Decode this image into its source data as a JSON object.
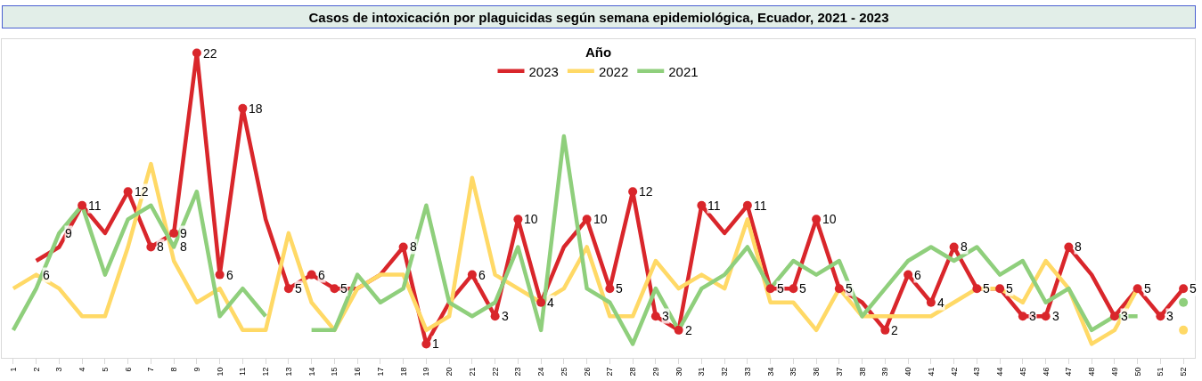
{
  "chart_data": {
    "type": "line",
    "title": "Casos de intoxicación por plaguicidas según semana epidemiológica, Ecuador, 2021 - 2023",
    "legend_title": "Año",
    "categories": [
      "1",
      "2",
      "3",
      "4",
      "5",
      "6",
      "7",
      "8",
      "9",
      "10",
      "11",
      "12",
      "13",
      "14",
      "15",
      "16",
      "17",
      "18",
      "19",
      "20",
      "21",
      "22",
      "23",
      "24",
      "25",
      "26",
      "27",
      "28",
      "29",
      "30",
      "31",
      "32",
      "33",
      "34",
      "35",
      "36",
      "37",
      "38",
      "39",
      "40",
      "41",
      "42",
      "43",
      "44",
      "45",
      "46",
      "47",
      "48",
      "49",
      "50",
      "51",
      "52"
    ],
    "series": [
      {
        "name": "2023",
        "color": "#d9262b",
        "values": [
          null,
          7,
          8,
          11,
          9,
          12,
          8,
          9,
          22,
          6,
          18,
          10,
          5,
          6,
          5,
          5,
          6,
          8,
          1,
          4,
          6,
          3,
          10,
          4,
          8,
          10,
          5,
          12,
          3,
          2,
          11,
          9,
          11,
          5,
          5,
          10,
          5,
          4,
          2,
          6,
          4,
          8,
          5,
          5,
          3,
          3,
          8,
          6,
          3,
          5,
          3,
          5
        ],
        "value_labels": [
          null,
          null,
          null,
          "11",
          null,
          "12",
          "8",
          "9",
          "22",
          "6",
          "18",
          null,
          "5",
          "6",
          "5",
          null,
          null,
          "8",
          "1",
          null,
          "6",
          "3",
          "10",
          "4",
          null,
          "10",
          "5",
          "12",
          "3",
          "2",
          "11",
          null,
          "11",
          "5",
          "5",
          "10",
          "5",
          null,
          "2",
          "6",
          "4",
          "8",
          "5",
          "5",
          "3",
          "3",
          "8",
          null,
          "3",
          "5",
          "3",
          "5"
        ]
      },
      {
        "name": "2022",
        "color": "#ffd966",
        "marker": "none",
        "values": [
          5,
          6,
          5,
          3,
          3,
          8,
          14,
          7,
          4,
          5,
          2,
          2,
          9,
          4,
          2,
          5,
          6,
          6,
          2,
          3,
          13,
          6,
          5,
          4,
          5,
          8,
          3,
          3,
          7,
          5,
          6,
          5,
          10,
          4,
          4,
          2,
          5,
          3,
          3,
          3,
          3,
          4,
          5,
          5,
          4,
          7,
          5,
          1,
          2,
          5,
          null,
          2
        ],
        "value_labels": [
          null,
          "6",
          null,
          null,
          null,
          null,
          null,
          null,
          null,
          null,
          null,
          null,
          null,
          null,
          null,
          null,
          null,
          null,
          null,
          null,
          null,
          null,
          null,
          null,
          null,
          null,
          null,
          null,
          null,
          null,
          null,
          null,
          null,
          null,
          null,
          null,
          null,
          null,
          null,
          null,
          null,
          null,
          null,
          null,
          null,
          null,
          null,
          null,
          null,
          null,
          null,
          null
        ]
      },
      {
        "name": "2021",
        "color": "#8fcf7c",
        "marker": "none",
        "values": [
          2,
          5,
          9,
          11,
          6,
          10,
          11,
          8,
          12,
          3,
          5,
          3,
          null,
          2,
          2,
          6,
          4,
          5,
          11,
          4,
          3,
          4,
          8,
          2,
          16,
          5,
          4,
          1,
          5,
          2,
          5,
          6,
          8,
          5,
          7,
          6,
          7,
          3,
          5,
          7,
          8,
          7,
          8,
          6,
          7,
          4,
          5,
          2,
          3,
          3,
          null,
          4
        ],
        "value_labels": [
          null,
          null,
          "9",
          null,
          null,
          null,
          null,
          "8",
          null,
          null,
          null,
          null,
          null,
          null,
          null,
          null,
          null,
          null,
          null,
          null,
          null,
          null,
          null,
          null,
          null,
          null,
          null,
          null,
          null,
          null,
          null,
          null,
          null,
          null,
          null,
          null,
          null,
          null,
          null,
          null,
          null,
          null,
          null,
          null,
          null,
          null,
          null,
          null,
          null,
          null,
          null,
          null
        ]
      }
    ],
    "ylim": [
      0,
      23
    ],
    "tick_labels": "x",
    "legend": "top",
    "marker": "circle",
    "line_style": "solid"
  }
}
